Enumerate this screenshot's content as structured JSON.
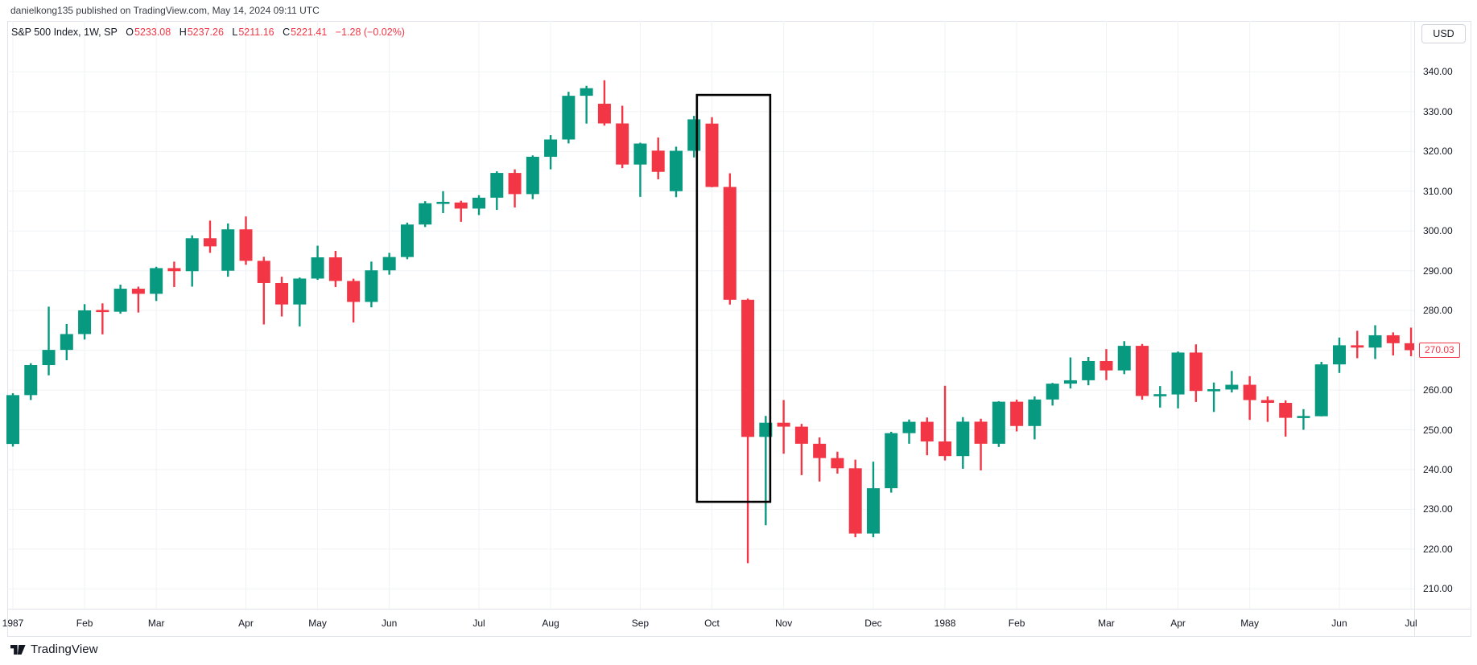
{
  "header": {
    "published_line": "danielkong135 published on TradingView.com, May 14, 2024 09:11 UTC"
  },
  "symbol_bar": {
    "symbol": "S&P 500 Index, 1W, SP",
    "o_label": "O",
    "o_value": "5233.08",
    "h_label": "H",
    "h_value": "5237.26",
    "l_label": "L",
    "l_value": "5211.16",
    "c_label": "C",
    "c_value": "5221.41",
    "change": "−1.28 (−0.02%)"
  },
  "price_axis": {
    "currency_button": "USD",
    "last_price_label": "270.03",
    "ticks": [
      {
        "label": "340.00",
        "value": 340
      },
      {
        "label": "330.00",
        "value": 330
      },
      {
        "label": "320.00",
        "value": 320
      },
      {
        "label": "310.00",
        "value": 310
      },
      {
        "label": "300.00",
        "value": 300
      },
      {
        "label": "290.00",
        "value": 290
      },
      {
        "label": "280.00",
        "value": 280
      },
      {
        "label": "260.00",
        "value": 260
      },
      {
        "label": "250.00",
        "value": 250
      },
      {
        "label": "240.00",
        "value": 240
      },
      {
        "label": "230.00",
        "value": 230
      },
      {
        "label": "220.00",
        "value": 220
      },
      {
        "label": "210.00",
        "value": 210
      }
    ]
  },
  "time_axis": {
    "labels": [
      {
        "text": "1987",
        "week": 0
      },
      {
        "text": "Feb",
        "week": 4
      },
      {
        "text": "Mar",
        "week": 8
      },
      {
        "text": "Apr",
        "week": 13
      },
      {
        "text": "May",
        "week": 17
      },
      {
        "text": "Jun",
        "week": 21
      },
      {
        "text": "Jul",
        "week": 26
      },
      {
        "text": "Aug",
        "week": 30
      },
      {
        "text": "Sep",
        "week": 35
      },
      {
        "text": "Oct",
        "week": 39
      },
      {
        "text": "Nov",
        "week": 43
      },
      {
        "text": "Dec",
        "week": 48
      },
      {
        "text": "1988",
        "week": 52
      },
      {
        "text": "Feb",
        "week": 56
      },
      {
        "text": "Mar",
        "week": 61
      },
      {
        "text": "Apr",
        "week": 65
      },
      {
        "text": "May",
        "week": 69
      },
      {
        "text": "Jun",
        "week": 74
      },
      {
        "text": "Jul",
        "week": 78
      }
    ]
  },
  "footer": {
    "brand": "TradingView"
  },
  "chart_data": {
    "type": "candlestick",
    "symbol": "S&P 500 Index",
    "interval": "1W",
    "exchange": "SP",
    "currency": "USD",
    "title": "S&P 500 Index weekly, Jan 1987 - Jul 1988 (1987 crash highlighted)",
    "ylim": [
      208,
      345
    ],
    "grid": true,
    "last_close": 270.03,
    "colors": {
      "up": "#089981",
      "down": "#f23645",
      "grid": "#f0f2f5",
      "annotation": "#000000",
      "text": "#131722"
    },
    "annotation_box": {
      "from_week": 38.16,
      "to_week": 42.25,
      "top_price": 334.2,
      "bottom_price": 231.9
    },
    "x_unit": "week_index",
    "ohlc": [
      [
        246.45,
        259.2,
        245.8,
        258.73
      ],
      [
        258.73,
        266.75,
        257.5,
        266.28
      ],
      [
        266.28,
        280.96,
        263.7,
        270.1
      ],
      [
        270.1,
        276.6,
        267.5,
        274.08
      ],
      [
        274.08,
        281.6,
        272.7,
        280.04
      ],
      [
        280.04,
        281.8,
        274.0,
        279.7
      ],
      [
        279.7,
        286.5,
        279.2,
        285.48
      ],
      [
        285.48,
        286.0,
        279.5,
        284.2
      ],
      [
        284.2,
        291.0,
        282.4,
        290.66
      ],
      [
        290.66,
        292.3,
        285.9,
        289.89
      ],
      [
        289.89,
        298.9,
        286.0,
        298.17
      ],
      [
        298.17,
        302.6,
        294.5,
        296.13
      ],
      [
        290.0,
        301.9,
        288.5,
        300.41
      ],
      [
        300.41,
        303.65,
        291.5,
        292.49
      ],
      [
        292.49,
        293.5,
        276.5,
        286.91
      ],
      [
        286.91,
        288.5,
        278.5,
        281.52
      ],
      [
        281.52,
        288.3,
        276.0,
        288.03
      ],
      [
        288.03,
        296.3,
        287.7,
        293.37
      ],
      [
        293.37,
        295.0,
        285.9,
        287.43
      ],
      [
        287.43,
        288.0,
        277.0,
        282.16
      ],
      [
        282.16,
        292.3,
        280.8,
        290.1
      ],
      [
        290.1,
        294.5,
        289.0,
        293.45
      ],
      [
        293.45,
        302.1,
        292.9,
        301.62
      ],
      [
        301.62,
        307.5,
        301.0,
        306.97
      ],
      [
        306.97,
        310.0,
        304.5,
        307.16
      ],
      [
        307.16,
        307.6,
        302.3,
        305.63
      ],
      [
        305.63,
        309.0,
        304.0,
        308.37
      ],
      [
        308.37,
        315.0,
        305.3,
        314.59
      ],
      [
        314.59,
        315.5,
        305.9,
        309.27
      ],
      [
        309.27,
        319.0,
        308.0,
        318.66
      ],
      [
        318.66,
        324.1,
        315.5,
        323.0
      ],
      [
        323.0,
        335.0,
        322.0,
        333.99
      ],
      [
        333.99,
        336.5,
        327.0,
        335.9
      ],
      [
        332.0,
        337.89,
        326.5,
        327.04
      ],
      [
        327.04,
        331.5,
        315.8,
        316.7
      ],
      [
        316.7,
        322.2,
        308.56,
        321.98
      ],
      [
        320.2,
        323.5,
        313.0,
        314.86
      ],
      [
        310.0,
        321.2,
        308.5,
        320.16
      ],
      [
        320.16,
        328.94,
        318.5,
        328.07
      ],
      [
        327.0,
        328.6,
        311.0,
        311.07
      ],
      [
        311.07,
        314.5,
        281.5,
        282.7
      ],
      [
        282.7,
        283.0,
        216.46,
        248.22
      ],
      [
        248.22,
        253.5,
        226.0,
        251.79
      ],
      [
        251.79,
        257.5,
        244.0,
        250.8
      ],
      [
        250.8,
        251.5,
        238.6,
        246.5
      ],
      [
        246.5,
        248.1,
        237.0,
        242.9
      ],
      [
        242.9,
        244.5,
        239.0,
        240.34
      ],
      [
        240.34,
        242.5,
        223.0,
        223.92
      ],
      [
        223.92,
        242.0,
        223.0,
        235.32
      ],
      [
        235.32,
        249.5,
        234.2,
        249.16
      ],
      [
        249.16,
        252.6,
        246.5,
        252.02
      ],
      [
        252.02,
        253.1,
        243.6,
        247.08
      ],
      [
        247.08,
        261.07,
        242.3,
        243.4
      ],
      [
        243.4,
        253.2,
        240.2,
        252.05
      ],
      [
        252.05,
        252.8,
        239.8,
        246.5
      ],
      [
        246.5,
        257.2,
        245.7,
        257.07
      ],
      [
        257.07,
        257.6,
        249.6,
        250.96
      ],
      [
        250.96,
        258.4,
        247.6,
        257.63
      ],
      [
        257.63,
        261.8,
        256.1,
        261.61
      ],
      [
        261.61,
        268.2,
        260.4,
        262.46
      ],
      [
        262.46,
        268.3,
        261.2,
        267.3
      ],
      [
        267.3,
        270.3,
        262.5,
        264.94
      ],
      [
        264.94,
        272.3,
        264.0,
        271.12
      ],
      [
        271.12,
        271.6,
        257.6,
        258.51
      ],
      [
        258.51,
        261.0,
        255.6,
        258.89
      ],
      [
        258.89,
        269.7,
        255.4,
        269.43
      ],
      [
        269.43,
        271.5,
        257.0,
        259.77
      ],
      [
        259.77,
        261.9,
        254.5,
        260.14
      ],
      [
        260.14,
        264.8,
        259.4,
        261.33
      ],
      [
        261.33,
        263.5,
        252.5,
        257.48
      ],
      [
        257.48,
        258.4,
        252.0,
        256.78
      ],
      [
        256.78,
        257.4,
        248.3,
        253.02
      ],
      [
        253.02,
        255.2,
        250.0,
        253.42
      ],
      [
        253.42,
        267.1,
        253.4,
        266.45
      ],
      [
        266.45,
        273.2,
        264.3,
        271.26
      ],
      [
        271.26,
        274.9,
        268.0,
        270.68
      ],
      [
        270.68,
        276.3,
        267.8,
        273.78
      ],
      [
        273.78,
        274.5,
        268.7,
        271.78
      ],
      [
        271.78,
        275.7,
        268.5,
        270.03
      ]
    ]
  }
}
